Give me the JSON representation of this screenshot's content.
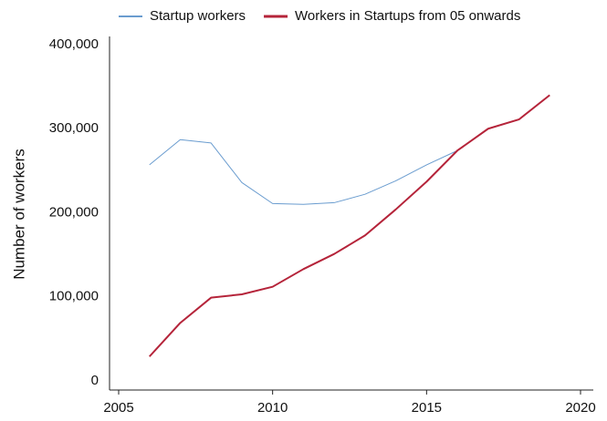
{
  "chart_data": {
    "type": "line",
    "y_label": "Number of workers",
    "x": [
      2006,
      2007,
      2008,
      2009,
      2010,
      2011,
      2012,
      2013,
      2014,
      2015,
      2016,
      2017,
      2018,
      2019
    ],
    "series": [
      {
        "name": "Startup workers",
        "color": "#6a9ccf",
        "width": 1,
        "values": [
          257000,
          287000,
          283000,
          236000,
          211000,
          210000,
          212000,
          222000,
          238000,
          257000,
          274000,
          null,
          null,
          null
        ]
      },
      {
        "name": "Workers in Startups from 05 onwards",
        "color": "#b5243a",
        "width": 2,
        "values": [
          29000,
          69000,
          99000,
          103000,
          112000,
          133000,
          151000,
          173000,
          204000,
          237000,
          274000,
          300000,
          311000,
          340000
        ]
      }
    ],
    "xlim": [
      2005,
      2020
    ],
    "xticks": [
      2005,
      2010,
      2015,
      2020
    ],
    "ylim": [
      0,
      400000
    ],
    "yticks": [
      0,
      {
        "value": 100000,
        "label": "100,000"
      },
      {
        "value": 200000,
        "label": "200,000"
      },
      {
        "value": 300000,
        "label": "300,000"
      },
      {
        "value": 400000,
        "label": "400,000"
      }
    ],
    "grid": false,
    "legend": "top"
  }
}
